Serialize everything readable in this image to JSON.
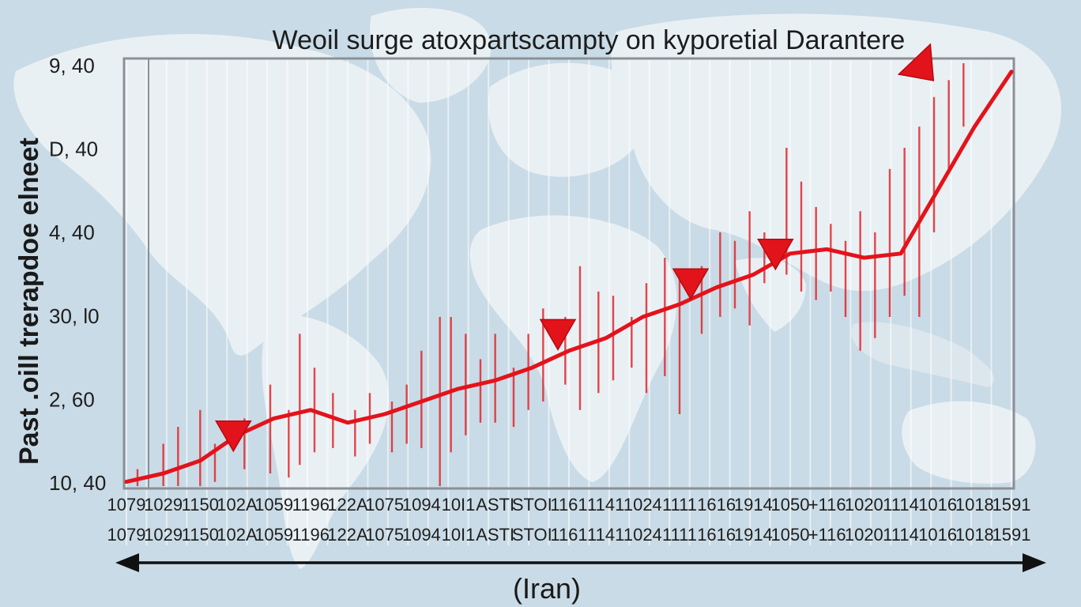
{
  "chart_data": {
    "type": "line",
    "title": "Weoil surge atoxpartscampty on kyporetial Darantere",
    "ylabel": "Past .oill trerapdoe elneet",
    "xlabel": "(Iran)",
    "y_tick_labels": [
      "9, 40",
      "D, 40",
      "4, 40",
      "30, l0",
      "2, 60",
      "10, 40"
    ],
    "x_tick_labels": [
      "1079",
      "1029",
      "1150",
      "102A",
      "1059",
      "1196",
      "122A",
      "1075",
      "1094",
      "10I1",
      "ASTI",
      "STOI",
      "1161",
      "1141",
      "1024",
      "1111",
      "1616",
      "1914",
      "1050",
      "+116",
      "1020",
      "1114",
      "1016",
      "1018",
      "1591"
    ],
    "ylim": [
      0,
      100
    ],
    "grid": true,
    "colors": {
      "series": "#e3131b",
      "spikes": "#e0262b",
      "background": "#c9dbe6",
      "land": "#e9f0f4"
    },
    "series": [
      {
        "x": [
          0,
          1,
          2,
          3,
          4,
          5,
          6,
          7,
          8,
          9,
          10,
          11,
          12,
          13,
          14,
          15,
          16,
          17,
          18,
          19,
          20,
          21,
          22,
          23,
          24
        ],
        "values": [
          1,
          3,
          6,
          12,
          16,
          18,
          15,
          17,
          20,
          23,
          25,
          28,
          32,
          35,
          40,
          43,
          47,
          50,
          55,
          56,
          54,
          55,
          70,
          85,
          98
        ]
      }
    ],
    "markers": [
      {
        "x": 2.9,
        "y": 12,
        "shape": "down-triangle"
      },
      {
        "x": 11.7,
        "y": 36,
        "shape": "down-triangle"
      },
      {
        "x": 15.3,
        "y": 48,
        "shape": "down-triangle"
      },
      {
        "x": 17.6,
        "y": 55,
        "shape": "down-triangle"
      },
      {
        "x": 21.5,
        "y": 100,
        "shape": "up-right-triangle"
      }
    ],
    "spikes": [
      {
        "x": 0.3,
        "low": 0,
        "high": 4
      },
      {
        "x": 1.0,
        "low": 0,
        "high": 10
      },
      {
        "x": 1.4,
        "low": 0,
        "high": 14
      },
      {
        "x": 2.0,
        "low": 0,
        "high": 18
      },
      {
        "x": 2.4,
        "low": 1,
        "high": 10
      },
      {
        "x": 3.2,
        "low": 4,
        "high": 16
      },
      {
        "x": 3.9,
        "low": 3,
        "high": 24
      },
      {
        "x": 4.4,
        "low": 2,
        "high": 18
      },
      {
        "x": 4.7,
        "low": 5,
        "high": 36
      },
      {
        "x": 5.1,
        "low": 8,
        "high": 28
      },
      {
        "x": 5.6,
        "low": 9,
        "high": 22
      },
      {
        "x": 6.2,
        "low": 7,
        "high": 18
      },
      {
        "x": 6.6,
        "low": 10,
        "high": 22
      },
      {
        "x": 7.2,
        "low": 8,
        "high": 20
      },
      {
        "x": 7.6,
        "low": 10,
        "high": 24
      },
      {
        "x": 8.0,
        "low": 9,
        "high": 32
      },
      {
        "x": 8.5,
        "low": 0,
        "high": 40
      },
      {
        "x": 8.8,
        "low": 8,
        "high": 40
      },
      {
        "x": 9.2,
        "low": 12,
        "high": 36
      },
      {
        "x": 9.6,
        "low": 15,
        "high": 30
      },
      {
        "x": 10.0,
        "low": 15,
        "high": 36
      },
      {
        "x": 10.5,
        "low": 14,
        "high": 28
      },
      {
        "x": 10.9,
        "low": 18,
        "high": 36
      },
      {
        "x": 11.3,
        "low": 20,
        "high": 42
      },
      {
        "x": 11.9,
        "low": 24,
        "high": 40
      },
      {
        "x": 12.3,
        "low": 18,
        "high": 52
      },
      {
        "x": 12.8,
        "low": 22,
        "high": 46
      },
      {
        "x": 13.2,
        "low": 25,
        "high": 45
      },
      {
        "x": 13.7,
        "low": 28,
        "high": 40
      },
      {
        "x": 14.1,
        "low": 22,
        "high": 48
      },
      {
        "x": 14.6,
        "low": 26,
        "high": 54
      },
      {
        "x": 15.0,
        "low": 17,
        "high": 50
      },
      {
        "x": 15.6,
        "low": 36,
        "high": 52
      },
      {
        "x": 16.1,
        "low": 40,
        "high": 60
      },
      {
        "x": 16.5,
        "low": 42,
        "high": 58
      },
      {
        "x": 16.9,
        "low": 38,
        "high": 65
      },
      {
        "x": 17.3,
        "low": 48,
        "high": 60
      },
      {
        "x": 17.9,
        "low": 50,
        "high": 80
      },
      {
        "x": 18.3,
        "low": 46,
        "high": 72
      },
      {
        "x": 18.7,
        "low": 44,
        "high": 66
      },
      {
        "x": 19.1,
        "low": 46,
        "high": 62
      },
      {
        "x": 19.5,
        "low": 40,
        "high": 58
      },
      {
        "x": 19.9,
        "low": 32,
        "high": 65
      },
      {
        "x": 20.3,
        "low": 35,
        "high": 60
      },
      {
        "x": 20.7,
        "low": 40,
        "high": 75
      },
      {
        "x": 21.1,
        "low": 45,
        "high": 80
      },
      {
        "x": 21.5,
        "low": 40,
        "high": 85
      },
      {
        "x": 21.9,
        "low": 60,
        "high": 92
      },
      {
        "x": 22.3,
        "low": 75,
        "high": 96
      },
      {
        "x": 22.7,
        "low": 85,
        "high": 100
      }
    ]
  }
}
